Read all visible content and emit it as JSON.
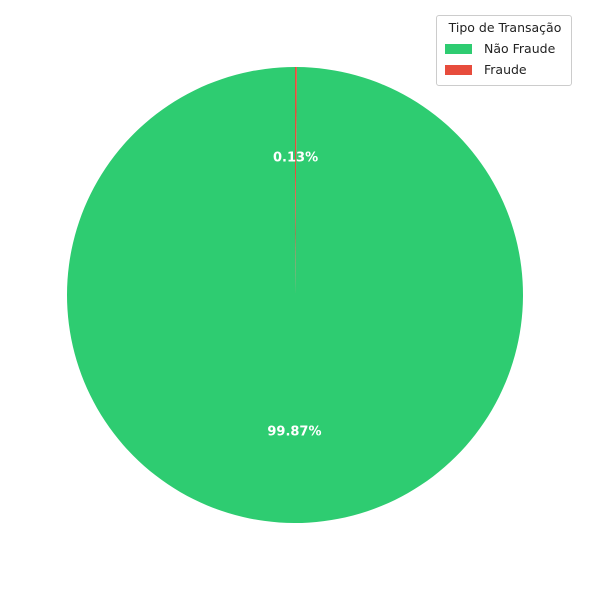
{
  "chart_data": {
    "type": "pie",
    "title": "",
    "categories": [
      "Não Fraude",
      "Fraude"
    ],
    "values": [
      99.87,
      0.13
    ],
    "value_labels": [
      "99.87%",
      "0.13%"
    ],
    "colors": [
      "#2ecc71",
      "#e74c3c"
    ],
    "start_angle": 90,
    "direction": "counterclockwise",
    "legend": {
      "title": "Tipo de Transação",
      "placement": "top-right",
      "entries": [
        "Não Fraude",
        "Fraude"
      ]
    }
  }
}
